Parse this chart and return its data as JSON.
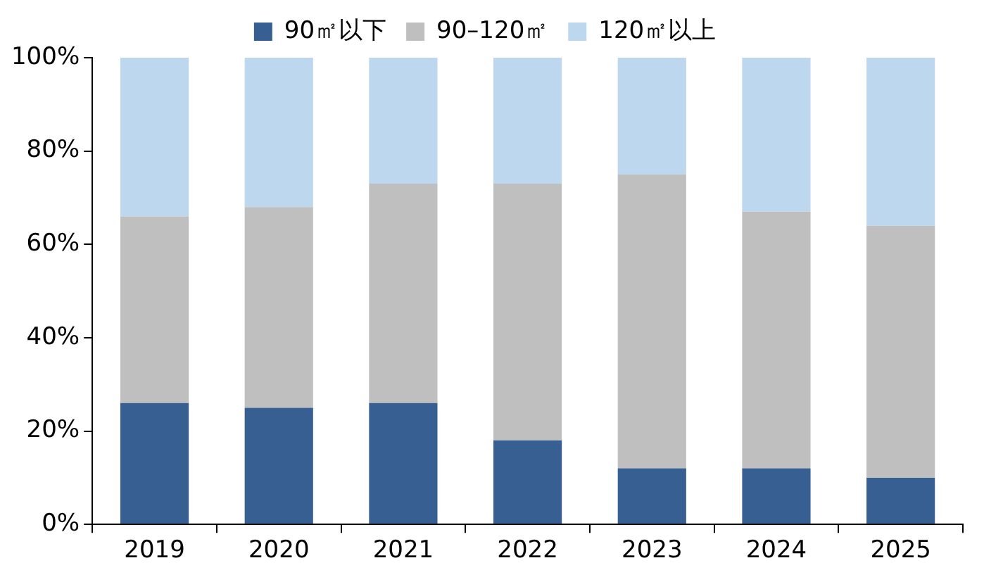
{
  "chart_data": {
    "type": "bar",
    "stacked": true,
    "categories": [
      "2019",
      "2020",
      "2021",
      "2022",
      "2023",
      "2024",
      "2025"
    ],
    "series": [
      {
        "name": "90㎡以下",
        "color": "#375f91",
        "values": [
          26,
          25,
          26,
          18,
          12,
          12,
          10
        ]
      },
      {
        "name": "90–120㎡",
        "color": "#bfbfbf",
        "values": [
          40,
          43,
          47,
          55,
          63,
          55,
          54
        ]
      },
      {
        "name": "120㎡以上",
        "color": "#bdd7ee",
        "values": [
          34,
          32,
          27,
          27,
          25,
          33,
          36
        ]
      }
    ],
    "ylim": [
      0,
      100
    ],
    "yticks": [
      {
        "value": 0,
        "label": "0%"
      },
      {
        "value": 20,
        "label": "20%"
      },
      {
        "value": 40,
        "label": "40%"
      },
      {
        "value": 60,
        "label": "60%"
      },
      {
        "value": 80,
        "label": "80%"
      },
      {
        "value": 100,
        "label": "100%"
      }
    ],
    "grid": false,
    "legend": "top"
  }
}
